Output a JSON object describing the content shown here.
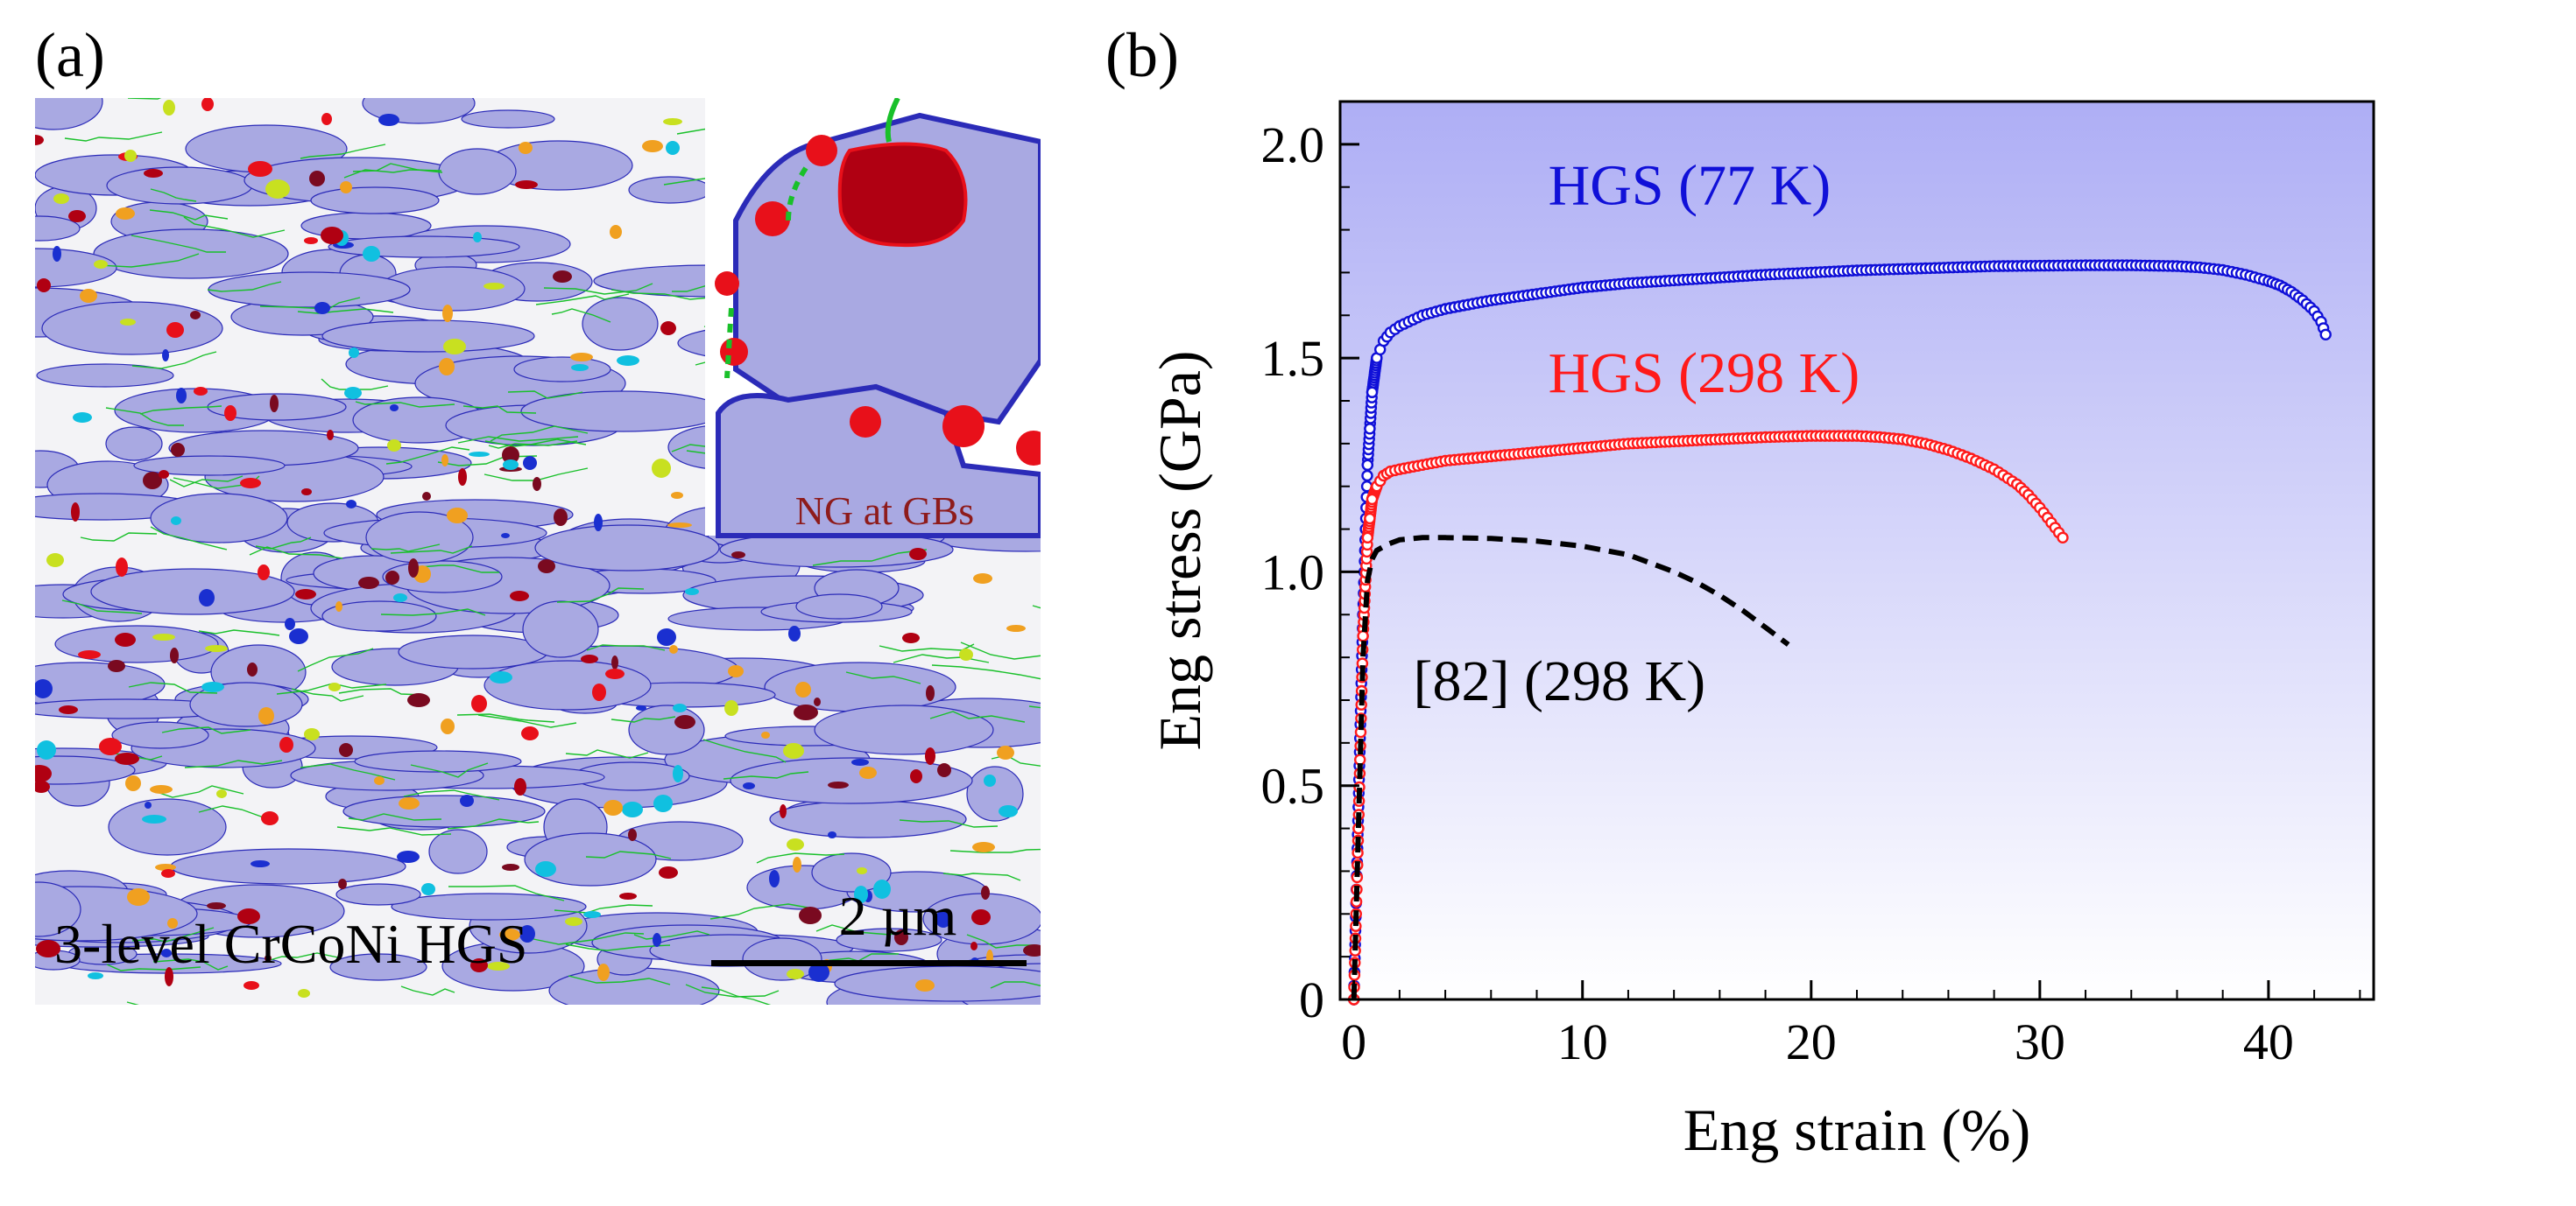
{
  "panel_a": {
    "label": "(a)",
    "inset_caption": "NG at GBs",
    "sample_caption": "3-level CrCoNi HGS",
    "scale_bar_label": "2 µm",
    "colors": {
      "grain_fill": "#a9a9e2",
      "grain_boundary": "#2b2bb8",
      "twin_boundary": "#19c02a",
      "nano_grain": "#b00012",
      "nano_grain_bright": "#e8101a",
      "background": "#f3f3f6"
    }
  },
  "chart_data": {
    "type": "line",
    "panel_label": "(b)",
    "xlabel": "Eng strain (%)",
    "ylabel": "Eng stress (GPa)",
    "xlim": [
      -0.6,
      44.6
    ],
    "ylim": [
      0,
      2.1
    ],
    "xticks": [
      0,
      10,
      20,
      30,
      40
    ],
    "yticks": [
      0,
      0.5,
      1.0,
      1.5,
      2.0
    ],
    "ytick_labels": [
      "0",
      "0.5",
      "1.0",
      "1.5",
      "2.0"
    ],
    "grid": false,
    "background_gradient": [
      "#aeaef5",
      "#ffffff"
    ],
    "series": [
      {
        "name": "HGS (77 K)",
        "label": "HGS (77 K)",
        "style": "open-circles",
        "color": "#1010d8",
        "x": [
          0,
          0.2,
          0.4,
          0.6,
          0.8,
          1.0,
          1.3,
          1.6,
          2.0,
          3,
          4,
          6,
          8,
          10,
          12,
          15,
          18,
          20,
          22,
          25,
          28,
          30,
          32,
          34,
          36,
          37,
          38,
          39,
          40,
          40.5,
          41,
          41.5,
          42,
          42.3,
          42.5
        ],
        "y": [
          0,
          0.45,
          0.9,
          1.25,
          1.42,
          1.5,
          1.54,
          1.56,
          1.575,
          1.6,
          1.615,
          1.635,
          1.65,
          1.665,
          1.675,
          1.685,
          1.695,
          1.7,
          1.705,
          1.71,
          1.715,
          1.716,
          1.717,
          1.717,
          1.715,
          1.712,
          1.706,
          1.695,
          1.68,
          1.67,
          1.655,
          1.635,
          1.61,
          1.585,
          1.555
        ]
      },
      {
        "name": "HGS (298 K)",
        "label": "HGS (298 K)",
        "style": "open-circles",
        "color": "#ff1a1a",
        "x": [
          0,
          0.2,
          0.4,
          0.6,
          0.8,
          1.0,
          1.3,
          1.6,
          2.0,
          3,
          4,
          6,
          8,
          10,
          12,
          14,
          16,
          18,
          20,
          22,
          23,
          24,
          25,
          26,
          27,
          28,
          29,
          29.5,
          30,
          30.5,
          31
        ],
        "y": [
          0,
          0.4,
          0.85,
          1.08,
          1.17,
          1.2,
          1.225,
          1.235,
          1.24,
          1.25,
          1.26,
          1.27,
          1.28,
          1.29,
          1.3,
          1.305,
          1.31,
          1.315,
          1.318,
          1.318,
          1.315,
          1.31,
          1.3,
          1.285,
          1.265,
          1.24,
          1.205,
          1.18,
          1.15,
          1.115,
          1.08
        ]
      },
      {
        "name": "[82] (298 K)",
        "label": "[82] (298 K)",
        "style": "dashed",
        "color": "#000000",
        "x": [
          0,
          0.2,
          0.4,
          0.6,
          0.8,
          1.0,
          1.5,
          2,
          3,
          4,
          6,
          8,
          10,
          12,
          14,
          15,
          16,
          17,
          18,
          19
        ],
        "y": [
          0,
          0.4,
          0.8,
          0.98,
          1.03,
          1.05,
          1.065,
          1.075,
          1.08,
          1.08,
          1.078,
          1.072,
          1.06,
          1.04,
          1.0,
          0.975,
          0.945,
          0.91,
          0.87,
          0.83
        ]
      }
    ]
  }
}
